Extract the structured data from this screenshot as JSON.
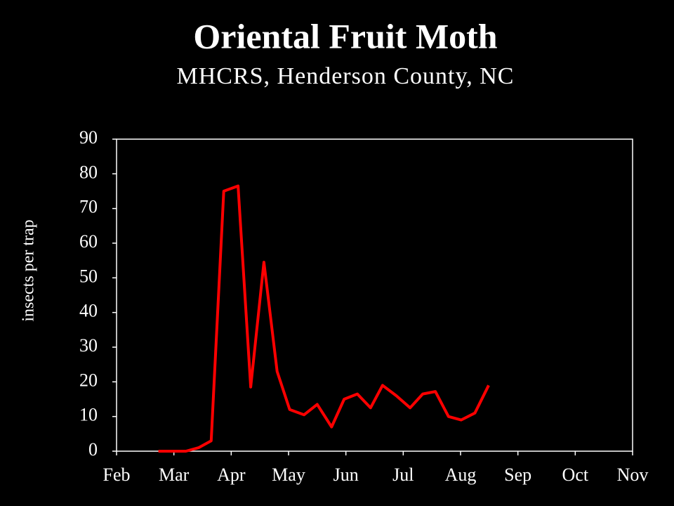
{
  "chart_data": {
    "type": "line",
    "title": "Oriental Fruit Moth",
    "subtitle": "MHCRS, Henderson County, NC",
    "y_label": "insects per trap",
    "x": [
      0.73,
      0.98,
      1.21,
      1.43,
      1.65,
      1.87,
      2.12,
      2.34,
      2.57,
      2.8,
      3.02,
      3.27,
      3.5,
      3.75,
      3.97,
      4.2,
      4.43,
      4.64,
      4.88,
      5.12,
      5.34,
      5.56,
      5.79,
      6.01,
      6.25,
      6.49
    ],
    "series": [
      {
        "name": "insects per trap",
        "color": "#ff0000",
        "values": [
          0,
          0,
          0,
          1,
          3,
          75,
          76.5,
          18.5,
          54.5,
          23,
          12,
          10.5,
          13.5,
          7,
          15,
          16.5,
          12.5,
          19,
          16,
          12.5,
          16.5,
          17.2,
          10,
          9,
          11,
          19
        ]
      }
    ],
    "xlim": [
      0,
      9
    ],
    "xticks": [
      {
        "value": 0,
        "label": "Feb"
      },
      {
        "value": 1,
        "label": "Mar"
      },
      {
        "value": 2,
        "label": "Apr"
      },
      {
        "value": 3,
        "label": "May"
      },
      {
        "value": 4,
        "label": "Jun"
      },
      {
        "value": 5,
        "label": "Jul"
      },
      {
        "value": 6,
        "label": "Aug"
      },
      {
        "value": 7,
        "label": "Sep"
      },
      {
        "value": 8,
        "label": "Oct"
      },
      {
        "value": 9,
        "label": "Nov"
      }
    ],
    "ylim": [
      0,
      90
    ],
    "yticks": [
      0,
      10,
      20,
      30,
      40,
      50,
      60,
      70,
      80,
      90
    ],
    "grid": false
  }
}
